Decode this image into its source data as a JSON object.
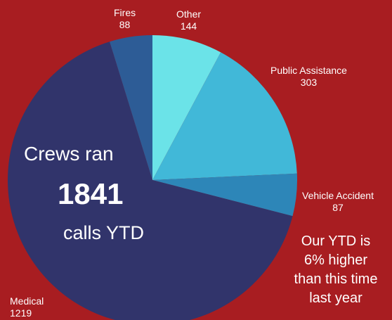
{
  "chart_data": {
    "type": "pie",
    "title": "",
    "slices": [
      {
        "label": "Other",
        "value": 144,
        "color": "#6be3e8"
      },
      {
        "label": "Public Assistance",
        "value": 303,
        "color": "#41b8d8"
      },
      {
        "label": "Vehicle Accident",
        "value": 87,
        "color": "#2d86b8"
      },
      {
        "label": "Medical",
        "value": 1219,
        "color": "#31346b"
      },
      {
        "label": "Fires",
        "value": 88,
        "color": "#2d5c96"
      }
    ]
  },
  "headline": {
    "line1": "Crews ran",
    "count": "1841",
    "line3": "calls YTD"
  },
  "note": {
    "lines": [
      "Our YTD is",
      "6% higher",
      "than this time",
      "last year"
    ]
  }
}
